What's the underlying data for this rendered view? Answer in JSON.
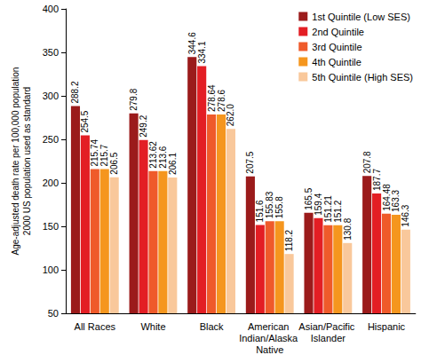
{
  "chart_data": {
    "type": "bar",
    "ylabel": "Age-adjusted death rate per 100,000 population\n2000 US population used as standard",
    "categories": [
      "All Races",
      "White",
      "Black",
      "American Indian/Alaska Native",
      "Asian/Pacific Islander",
      "Hispanic"
    ],
    "series": [
      {
        "name": "1st Quintile (Low SES)",
        "color": "#9b1b1b",
        "values": [
          288.2,
          279.8,
          344.6,
          207.5,
          165.5,
          207.8
        ]
      },
      {
        "name": "2nd Quintile",
        "color": "#e31e24",
        "values": [
          254.5,
          249.2,
          334.1,
          151.6,
          159.4,
          187.7
        ]
      },
      {
        "name": "3rd Quintile",
        "color": "#ef5a2a",
        "values": [
          215.74,
          213.62,
          278.64,
          155.83,
          151.21,
          164.48
        ]
      },
      {
        "name": "4th Quintile",
        "color": "#f5961e",
        "values": [
          215.7,
          213.6,
          278.6,
          155.8,
          151.2,
          163.3
        ]
      },
      {
        "name": "5th Quintile (High SES)",
        "color": "#f9c89b",
        "values": [
          206.5,
          206.1,
          262.0,
          118.2,
          130.8,
          146.3
        ],
        "value_labels": [
          "206.5",
          "206.1",
          "262.0",
          "118.2",
          "130.8",
          "146.3"
        ]
      }
    ],
    "ylim": [
      50,
      400
    ],
    "yticks": [
      50,
      100,
      150,
      200,
      250,
      300,
      350,
      400
    ],
    "grid": false,
    "legend": "top-right",
    "data_labels": true
  }
}
